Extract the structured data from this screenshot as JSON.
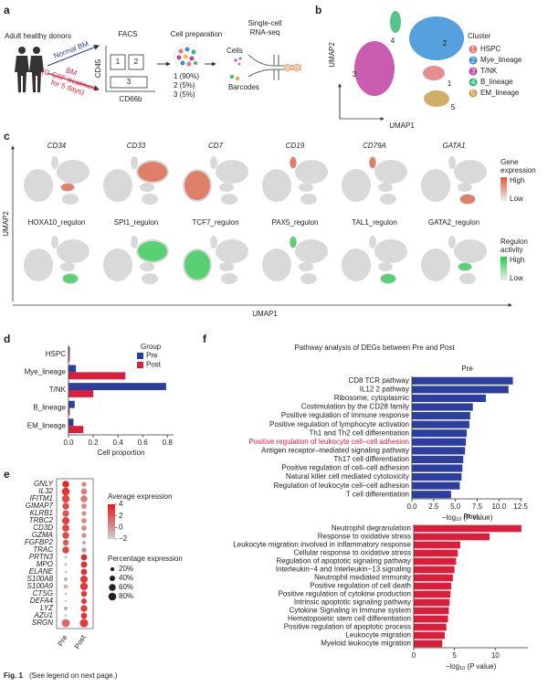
{
  "panel_labels": [
    "a",
    "b",
    "c",
    "d",
    "e",
    "f"
  ],
  "panel_a": {
    "donors": "Adult healthy donors",
    "normal": "Normal BM",
    "bm": "BM",
    "treatment": [
      "(G-CSF treatment",
      "for 5 days)"
    ],
    "facs": "FACS",
    "y_axis": "CD45",
    "x_axis": "CD66b",
    "gates": [
      "1",
      "2",
      "3"
    ],
    "prep": "Cell preparation",
    "fractions": [
      "1 (90%)",
      "2 (5%)",
      "3 (5%)"
    ],
    "seq": [
      "Single-cell",
      "RNA-seq"
    ],
    "cells": "Cells",
    "barcodes": "Barcodes"
  },
  "panel_b": {
    "xlabel": "UMAP1",
    "ylabel": "UMAP2",
    "legend_title": "Cluster",
    "clusters": [
      {
        "id": "1",
        "name": "HSPC",
        "color": "#e07b7b"
      },
      {
        "id": "2",
        "name": "Mye_lineage",
        "color": "#3a8fd8"
      },
      {
        "id": "3",
        "name": "T/NK",
        "color": "#c040a0"
      },
      {
        "id": "4",
        "name": "B_lineage",
        "color": "#3cb878"
      },
      {
        "id": "5",
        "name": "EM_lineage",
        "color": "#c8a050"
      }
    ]
  },
  "panel_c": {
    "genes": [
      "CD34",
      "CD33",
      "CD7",
      "CD19",
      "CD79A",
      "GATA1"
    ],
    "gene_legend": {
      "title": [
        "Gene",
        "expression"
      ],
      "high": "High",
      "low": "Low",
      "color": "#e0583a"
    },
    "regulons": [
      "HOXA10_regulon",
      "SPI1_regulon",
      "TCF7_regulon",
      "PAX5_regulon",
      "TAL1_regulon",
      "GATA2_regulon"
    ],
    "regulon_legend": {
      "title": [
        "Regulon",
        "activity"
      ],
      "high": "High",
      "low": "Low",
      "color": "#22cc44"
    },
    "xlabel": "UMAP1",
    "ylabel": "UMAP2"
  },
  "panel_f": {
    "title": "Pathway analysis of DEGs between Pre and Post"
  },
  "chart_data": [
    {
      "type": "bar",
      "orientation": "horizontal",
      "categories": [
        "HSPC",
        "Mye_lineage",
        "T/NK",
        "B_lineage",
        "EM_lineage"
      ],
      "series": [
        {
          "name": "Pre",
          "color": "#2c3e9e",
          "values": [
            0.01,
            0.06,
            0.79,
            0.05,
            0.04
          ]
        },
        {
          "name": "Post",
          "color": "#d91f3c",
          "values": [
            0.01,
            0.46,
            0.2,
            0.01,
            0.12
          ]
        }
      ],
      "xlabel": "Cell proportion",
      "legend_title": "Group",
      "legend": "top-right",
      "xlim": [
        0,
        0.85
      ],
      "xticks": [
        {
          "value": 0,
          "label": "0.0"
        },
        0.2,
        0.4,
        0.6,
        0.8
      ]
    },
    {
      "type": "dot",
      "categories": [
        "GNLY",
        "IL32",
        "IFITM1",
        "GIMAP7",
        "KLRB1",
        "TRBC2",
        "CD3D",
        "GZMA",
        "FGFBP2",
        "TRAC",
        "PRTN3",
        "MPO",
        "ELANE",
        "S100A8",
        "S100A9",
        "CTSG",
        "DEFA4",
        "LYZ",
        "AZU1",
        "SRGN"
      ],
      "series": [
        {
          "name": "Pre",
          "values": [
            3.5,
            3.2,
            2.5,
            2.3,
            2.2,
            2.8,
            2.6,
            2.4,
            2.0,
            2.7,
            -1.5,
            -1.5,
            -1.6,
            -1,
            -1,
            -1.6,
            -1.6,
            -0.8,
            -1.5,
            1.5
          ],
          "sizes": [
            60,
            80,
            75,
            60,
            55,
            70,
            65,
            60,
            45,
            60,
            10,
            10,
            8,
            20,
            25,
            8,
            5,
            20,
            8,
            85
          ]
        },
        {
          "name": "Post",
          "values": [
            0.5,
            0.6,
            0.8,
            0.2,
            0.1,
            0.4,
            0.4,
            0.3,
            -0.2,
            0.3,
            3.5,
            3.2,
            3.3,
            3.0,
            3.0,
            3.1,
            3.0,
            2.8,
            3.2,
            3.0
          ],
          "sizes": [
            30,
            50,
            60,
            40,
            30,
            35,
            35,
            30,
            15,
            30,
            50,
            55,
            50,
            70,
            75,
            45,
            40,
            60,
            50,
            90
          ]
        }
      ],
      "color_legend_title": "Average expression",
      "colorlim": [
        -2,
        4
      ],
      "colors": [
        "#cfcfcf",
        "#e41a1c"
      ],
      "color_ticks": [
        4,
        2,
        0,
        {
          "value": -2,
          "label": "−2"
        }
      ],
      "size_legend_title": "Percentage expression",
      "size_ticks": [
        {
          "value": 20,
          "label": "20%"
        },
        {
          "value": 40,
          "label": "40%"
        },
        {
          "value": 60,
          "label": "60%"
        },
        {
          "value": 80,
          "label": "80%"
        }
      ]
    },
    {
      "type": "bar",
      "orientation": "horizontal",
      "title": "Pre",
      "color": "#2c3e9e",
      "categories": [
        "CD8 TCR pathway",
        "IL12 2 pathway",
        "Ribosome, cytoplasmic",
        "Costimulation by the CD28 family",
        "Positive regulation of immune response",
        "Positive regulation of lymphocyte activation",
        "Th1 and Th2 cell differentiation",
        "Positive regulation of leukocyte cell–cell adhesion",
        "Antigen receptor–mediated signaling pathway",
        "Th17 cell differentiation",
        "Positive regulation of cell–cell adhesion",
        "Natural killer cell mediated cytotoxicity",
        "Regulation of leukocyte cell–cell adhesion",
        "T cell differentiation"
      ],
      "values": [
        11.6,
        11.1,
        8.5,
        7.0,
        6.7,
        6.6,
        6.3,
        6.2,
        6.1,
        5.9,
        5.8,
        5.7,
        5.5,
        4.5
      ],
      "highlight": 7,
      "highlight_color": "#d91f3c",
      "xlim": [
        0,
        12.7
      ],
      "xticks": [
        {
          "value": 0,
          "label": "0.0"
        },
        2.5,
        {
          "value": 5,
          "label": "5.0"
        },
        7.5,
        {
          "value": 10,
          "label": "10.0"
        },
        12.5
      ],
      "xlabel": {
        "main": "−log",
        "sub": "10",
        "rest": " (P value)"
      }
    },
    {
      "type": "bar",
      "orientation": "horizontal",
      "title": "Post",
      "color": "#d91f3c",
      "categories": [
        "Neutrophil degranulation",
        "Response to oxidative stress",
        "Leukocyte migration involved in inflammatory response",
        "Cellular response to oxidative stress",
        "Regulation of apoptotic signaling pathway",
        "Interleukin−4 and Interleukin−13 signaling",
        "Neutrophil mediated immunity",
        "Positive regulation of cell death",
        "Positive regulation of cytokine production",
        "Intrinsic apoptotic signaling pathway",
        "Cytokine Signaling in Immune system",
        "Hematopoietic stem cell differentiation",
        "Positive regulation of apoptotic process",
        "Leukocyte migration",
        "Myeloid leukocyte migration"
      ],
      "values": [
        13.2,
        9.3,
        5.7,
        5.4,
        5.2,
        5.0,
        4.8,
        4.6,
        4.5,
        4.4,
        4.3,
        4.2,
        4.0,
        3.8,
        3.5
      ],
      "xlim": [
        0,
        14
      ],
      "xticks": [
        0,
        5,
        10
      ],
      "xlabel": {
        "main": "−log",
        "sub": "10",
        "rest": " (P value)"
      }
    }
  ],
  "caption": {
    "label": "Fig. 1",
    "text": "(See legend on next page.)"
  }
}
